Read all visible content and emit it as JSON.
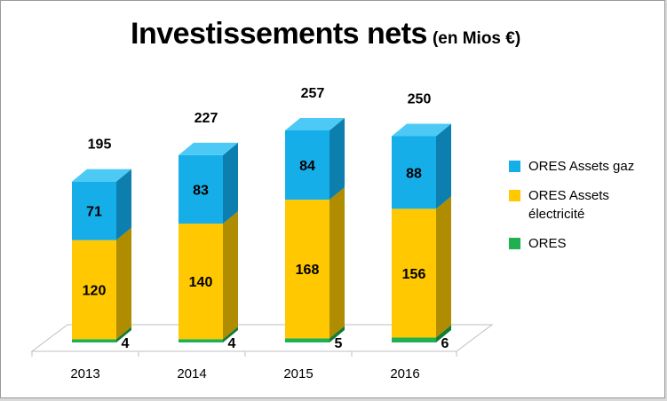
{
  "chart_data": {
    "type": "bar",
    "stacked": true,
    "title": "Investissements nets",
    "subtitle": "(en Mios €)",
    "categories": [
      "2013",
      "2014",
      "2015",
      "2016"
    ],
    "series": [
      {
        "name": "ORES",
        "values": [
          4,
          4,
          5,
          6
        ],
        "color": "#1fb050",
        "side": "#147a36",
        "top": "#3fd070"
      },
      {
        "name": "ORES Assets électricité",
        "values": [
          120,
          140,
          168,
          156
        ],
        "color": "#ffc800",
        "side": "#b08c00",
        "top": "#ffd84a"
      },
      {
        "name": "ORES Assets gaz",
        "values": [
          71,
          83,
          84,
          88
        ],
        "color": "#16aee8",
        "side": "#0d7fae",
        "top": "#4ccaf5"
      }
    ],
    "totals": [
      195,
      227,
      257,
      250
    ],
    "legend_position": "right",
    "grid": false
  }
}
